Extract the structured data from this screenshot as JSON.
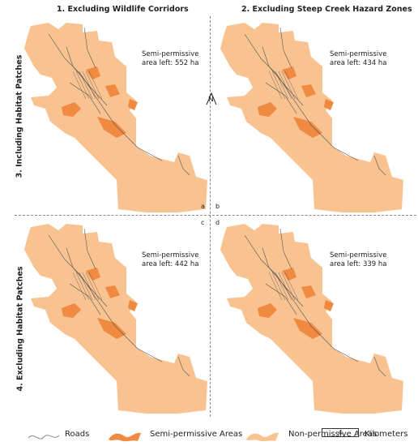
{
  "columns": [
    {
      "title": "1. Excluding Wildlife Corridors"
    },
    {
      "title": "2. Excluding Steep Creek Hazard Zones"
    }
  ],
  "rows": [
    {
      "title": "3. Including Habitat Patches"
    },
    {
      "title": "4. Excluding Habitat Patches"
    }
  ],
  "panels": [
    {
      "letter": "a",
      "label_line1": "Semi-permissive",
      "label_line2": "area left: 552 ha"
    },
    {
      "letter": "b",
      "label_line1": "Semi-permissive",
      "label_line2": "area left: 434 ha"
    },
    {
      "letter": "c",
      "label_line1": "Semi-permissive",
      "label_line2": "area left: 442 ha"
    },
    {
      "letter": "d",
      "label_line1": "Semi-permissive",
      "label_line2": "area left: 339 ha"
    }
  ],
  "north_label": "N",
  "legend": {
    "roads": "Roads",
    "semi": "Semi-permissive Areas",
    "non": "Non-permissive Areas",
    "scale_value": "4",
    "scale_unit": "Kilometers"
  },
  "colors": {
    "non_permissive": "#f8c391",
    "semi_permissive": "#ef8a40",
    "roads": "#555555"
  }
}
